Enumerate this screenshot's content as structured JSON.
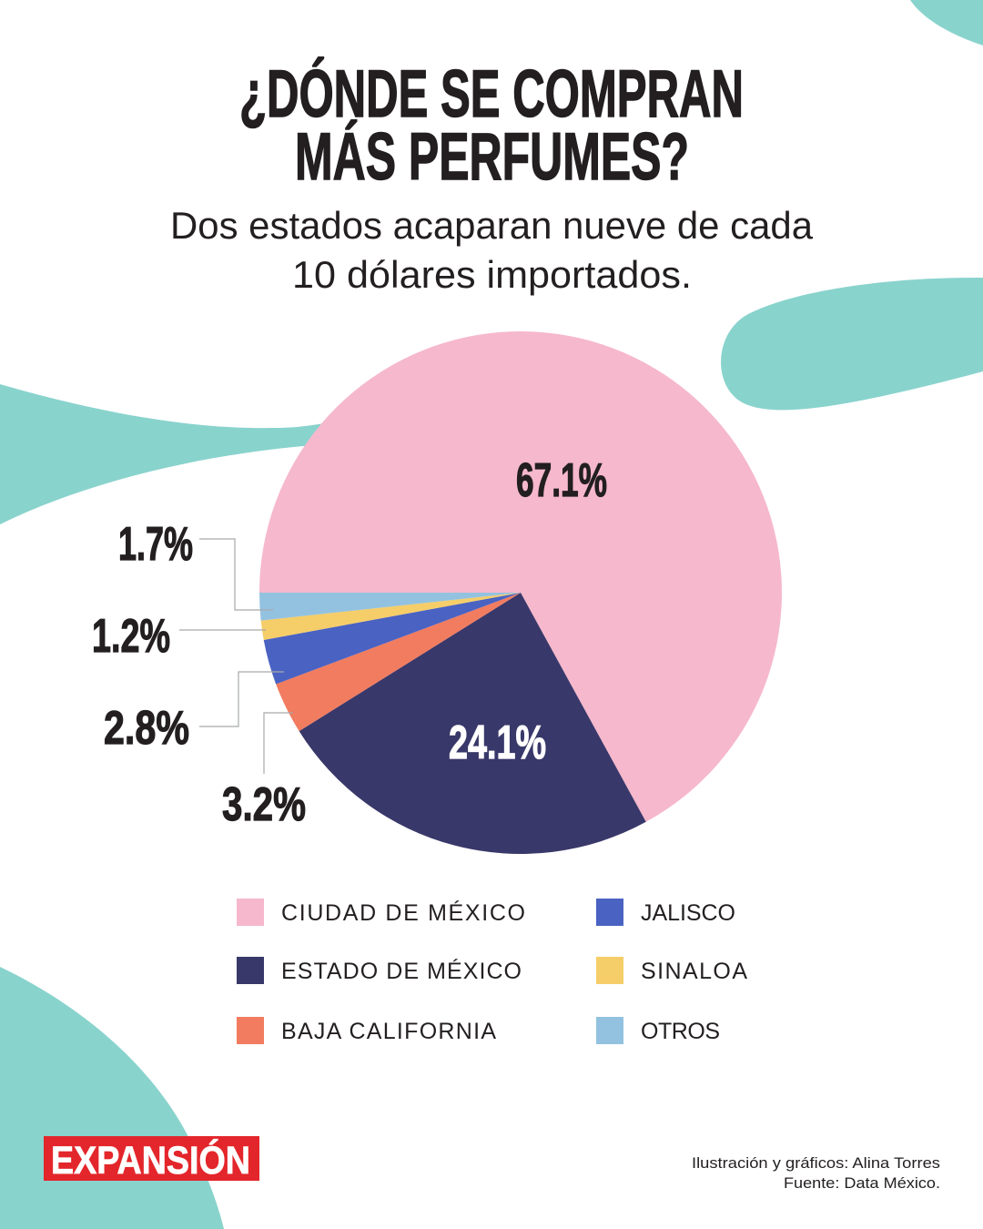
{
  "theme": {
    "accent_teal": "#89d3cd",
    "text_color": "#231f20"
  },
  "brand": {
    "logo_text": "EXPANSIÓN",
    "logo_color": "#e3262b"
  },
  "chart_data": {
    "type": "pie",
    "title_lines": [
      "¿DÓNDE SE COMPRAN",
      "MÁS PERFUMES?"
    ],
    "subtitle_lines": [
      "Dos estados acaparan nueve de cada",
      "10 dólares importados."
    ],
    "legend_placement": "bottom",
    "slices": [
      {
        "name": "CIUDAD DE MÉXICO",
        "value": 67.1,
        "label": "67.1%",
        "color": "#f6b8cc"
      },
      {
        "name": "ESTADO DE MÉXICO",
        "value": 24.1,
        "label": "24.1%",
        "color": "#39386a"
      },
      {
        "name": "BAJA CALIFORNIA",
        "value": 3.2,
        "label": "3.2%",
        "color": "#f17c5f"
      },
      {
        "name": "JALISCO",
        "value": 2.8,
        "label": "2.8%",
        "color": "#4a62c2"
      },
      {
        "name": "SINALOA",
        "value": 1.2,
        "label": "1.2%",
        "color": "#f5cd69"
      },
      {
        "name": "OTROS",
        "value": 1.7,
        "label": "1.7%",
        "color": "#93c2e0"
      }
    ]
  },
  "footer": {
    "credit": "Ilustración y gráficos: Alina Torres",
    "source": "Fuente: Data México."
  }
}
